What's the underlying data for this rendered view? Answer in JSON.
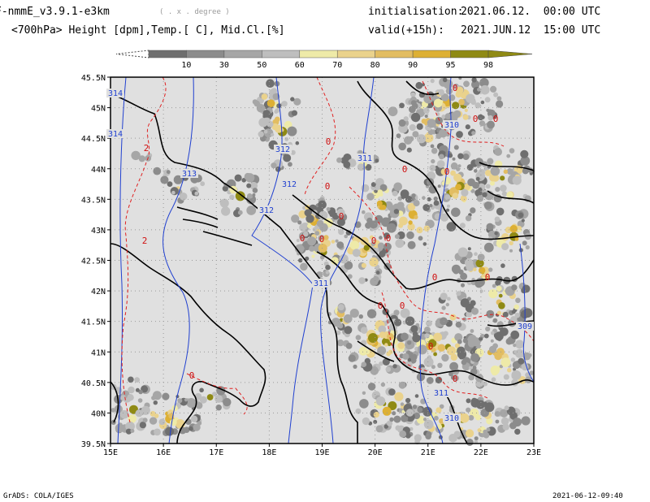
{
  "header": {
    "model_name": "F-nmmE_v3.9.1-e3km",
    "grid_note": "( . x . degree )",
    "init_label": "initialisation:",
    "init_value": "2021.06.12.  00:00 UTC",
    "fields": "<700hPa> Height [dpm],Temp.[ C], Mid.Cl.[%]",
    "valid_label": "valid(+15h):",
    "valid_value": "2021.JUN.12  15:00 UTC"
  },
  "colorbar": {
    "labels": [
      "10",
      "30",
      "50",
      "60",
      "70",
      "80",
      "90",
      "95",
      "98"
    ],
    "colors": [
      "#6f6f6f",
      "#8c8c8c",
      "#a6a6a6",
      "#bebebe",
      "#eeeaa8",
      "#ead28c",
      "#e2bd62",
      "#ddb034",
      "#8f8a14"
    ]
  },
  "map": {
    "lat_labels": [
      "45.5N",
      "45N",
      "44.5N",
      "44N",
      "43.5N",
      "43N",
      "42.5N",
      "42N",
      "41.5N",
      "41N",
      "40.5N",
      "40N",
      "39.5N"
    ],
    "lon_labels": [
      "15E",
      "16E",
      "17E",
      "18E",
      "19E",
      "20E",
      "21E",
      "22E",
      "23E"
    ],
    "height_labels": [
      "313",
      "312",
      "312",
      "312",
      "311",
      "311",
      "310",
      "310",
      "311",
      "314",
      "314",
      "309"
    ],
    "temp_labels": [
      "2",
      "2",
      "0",
      "0",
      "0",
      "0",
      "0",
      "0",
      "0",
      "0",
      "0",
      "0",
      "0",
      "0",
      "0",
      "0",
      "0",
      "0",
      "0",
      "0",
      "0"
    ],
    "colors": {
      "land": "#e0e0e0",
      "coast": "#000000",
      "height_contour": "#2040d0",
      "temp_contour": "#e02020",
      "grid": "#9a9a9a"
    }
  },
  "footer": {
    "credit": "GrADS: COLA/IGES",
    "timestamp": "2021-06-12-09:40"
  }
}
